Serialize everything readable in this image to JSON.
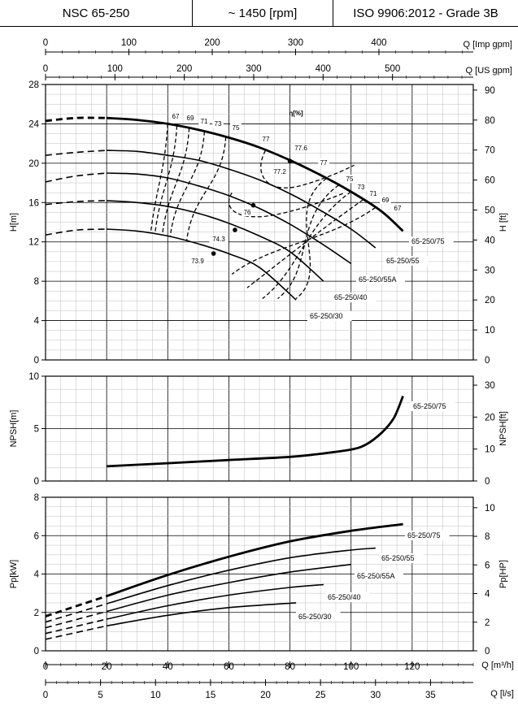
{
  "header": {
    "model": "NSC 65-250",
    "speed": "~ 1450 [rpm]",
    "standard": "ISO 9906:2012 - Grade 3B"
  },
  "axes": {
    "imp_gpm": {
      "label": "Q [Imp gpm]",
      "ticks": [
        0,
        100,
        200,
        300,
        400
      ]
    },
    "us_gpm": {
      "label": "Q [US gpm]",
      "ticks": [
        0,
        100,
        200,
        300,
        400,
        500
      ]
    },
    "m3h": {
      "label": "Q [m³/h]",
      "ticks": [
        0,
        20,
        40,
        60,
        80,
        100,
        120
      ]
    },
    "ls": {
      "label": "Q [l/s]",
      "ticks": [
        0,
        5,
        10,
        15,
        20,
        25,
        30,
        35
      ]
    }
  },
  "chart_data": [
    {
      "type": "line",
      "id": "head",
      "ylabel": "H[m]",
      "ylabel_right": "H [ft]",
      "ylim": [
        0,
        28
      ],
      "yticks": [
        0,
        4,
        8,
        12,
        16,
        20,
        24,
        28
      ],
      "yticks_right": [
        0,
        10,
        20,
        30,
        40,
        50,
        60,
        70,
        80,
        90
      ],
      "xlim": [
        0,
        140
      ],
      "grid": true,
      "efficiency_title": "η[%]",
      "series": [
        {
          "name": "65-250/75",
          "dashed_to": 20,
          "points": [
            [
              0,
              24.3
            ],
            [
              10,
              24.6
            ],
            [
              20,
              24.6
            ],
            [
              30,
              24.4
            ],
            [
              40,
              24.0
            ],
            [
              50,
              23.4
            ],
            [
              60,
              22.6
            ],
            [
              70,
              21.6
            ],
            [
              80,
              20.3
            ],
            [
              90,
              18.8
            ],
            [
              100,
              17.1
            ],
            [
              110,
              15.1
            ],
            [
              117,
              13.1
            ]
          ]
        },
        {
          "name": "65-250/55",
          "dashed_to": 20,
          "points": [
            [
              0,
              20.8
            ],
            [
              10,
              21.1
            ],
            [
              20,
              21.3
            ],
            [
              30,
              21.2
            ],
            [
              40,
              20.8
            ],
            [
              50,
              20.3
            ],
            [
              60,
              19.4
            ],
            [
              70,
              18.3
            ],
            [
              80,
              16.9
            ],
            [
              90,
              15.2
            ],
            [
              100,
              13.3
            ],
            [
              108,
              11.4
            ]
          ]
        },
        {
          "name": "65-250/55A",
          "dashed_to": 20,
          "points": [
            [
              0,
              18.1
            ],
            [
              10,
              18.7
            ],
            [
              20,
              19.0
            ],
            [
              30,
              18.9
            ],
            [
              40,
              18.5
            ],
            [
              50,
              17.7
            ],
            [
              60,
              16.7
            ],
            [
              70,
              15.4
            ],
            [
              80,
              13.8
            ],
            [
              90,
              11.9
            ],
            [
              100,
              9.8
            ]
          ]
        },
        {
          "name": "65-250/40",
          "dashed_to": 20,
          "points": [
            [
              0,
              15.8
            ],
            [
              10,
              16.1
            ],
            [
              20,
              16.2
            ],
            [
              30,
              16.0
            ],
            [
              40,
              15.6
            ],
            [
              50,
              14.9
            ],
            [
              60,
              13.9
            ],
            [
              70,
              12.6
            ],
            [
              80,
              11.0
            ],
            [
              91,
              8.0
            ]
          ]
        },
        {
          "name": "65-250/30",
          "dashed_to": 20,
          "points": [
            [
              0,
              12.7
            ],
            [
              10,
              13.2
            ],
            [
              20,
              13.3
            ],
            [
              30,
              13.1
            ],
            [
              40,
              12.6
            ],
            [
              50,
              11.8
            ],
            [
              60,
              10.8
            ],
            [
              70,
              9.4
            ],
            [
              82,
              6.1
            ]
          ]
        }
      ],
      "efficiency_labels": [
        "67",
        "69",
        "71",
        "73",
        "75",
        "77",
        "77.6",
        "77",
        "77.2",
        "76",
        "74.3",
        "73.9",
        "75",
        "73",
        "71",
        "69",
        "67"
      ]
    },
    {
      "type": "line",
      "id": "npsh",
      "ylabel": "NPSH[m]",
      "ylabel_right": "NPSH[ft]",
      "ylim": [
        0,
        10
      ],
      "yticks": [
        0,
        5,
        10
      ],
      "yticks_right": [
        0,
        10,
        20,
        30
      ],
      "xlim": [
        0,
        140
      ],
      "grid": true,
      "series": [
        {
          "name": "65-250/75",
          "points": [
            [
              20,
              1.4
            ],
            [
              40,
              1.7
            ],
            [
              60,
              2.0
            ],
            [
              80,
              2.3
            ],
            [
              90,
              2.6
            ],
            [
              100,
              3.0
            ],
            [
              105,
              3.5
            ],
            [
              110,
              4.6
            ],
            [
              114,
              6.0
            ],
            [
              117,
              8.1
            ]
          ]
        }
      ]
    },
    {
      "type": "line",
      "id": "power",
      "ylabel": "Pp[kW]",
      "ylabel_right": "Pp[HP]",
      "ylim": [
        0,
        8
      ],
      "yticks": [
        0,
        2,
        4,
        6,
        8
      ],
      "yticks_right": [
        0,
        2,
        4,
        6,
        8,
        10
      ],
      "xlim": [
        0,
        140
      ],
      "grid": true,
      "series": [
        {
          "name": "65-250/75",
          "dashed_to": 20,
          "points": [
            [
              0,
              1.8
            ],
            [
              20,
              2.85
            ],
            [
              40,
              3.95
            ],
            [
              60,
              4.9
            ],
            [
              80,
              5.7
            ],
            [
              100,
              6.25
            ],
            [
              117,
              6.6
            ]
          ]
        },
        {
          "name": "65-250/55",
          "dashed_to": 20,
          "points": [
            [
              0,
              1.5
            ],
            [
              20,
              2.45
            ],
            [
              40,
              3.4
            ],
            [
              60,
              4.2
            ],
            [
              80,
              4.85
            ],
            [
              100,
              5.25
            ],
            [
              108,
              5.35
            ]
          ]
        },
        {
          "name": "65-250/55A",
          "dashed_to": 20,
          "points": [
            [
              0,
              1.2
            ],
            [
              20,
              2.05
            ],
            [
              40,
              2.9
            ],
            [
              60,
              3.55
            ],
            [
              80,
              4.1
            ],
            [
              100,
              4.5
            ]
          ]
        },
        {
          "name": "65-250/40",
          "dashed_to": 20,
          "points": [
            [
              0,
              0.9
            ],
            [
              20,
              1.65
            ],
            [
              40,
              2.35
            ],
            [
              60,
              2.9
            ],
            [
              80,
              3.3
            ],
            [
              91,
              3.45
            ]
          ]
        },
        {
          "name": "65-250/30",
          "dashed_to": 20,
          "points": [
            [
              0,
              0.6
            ],
            [
              20,
              1.3
            ],
            [
              40,
              1.85
            ],
            [
              60,
              2.25
            ],
            [
              82,
              2.5
            ]
          ]
        }
      ]
    }
  ]
}
